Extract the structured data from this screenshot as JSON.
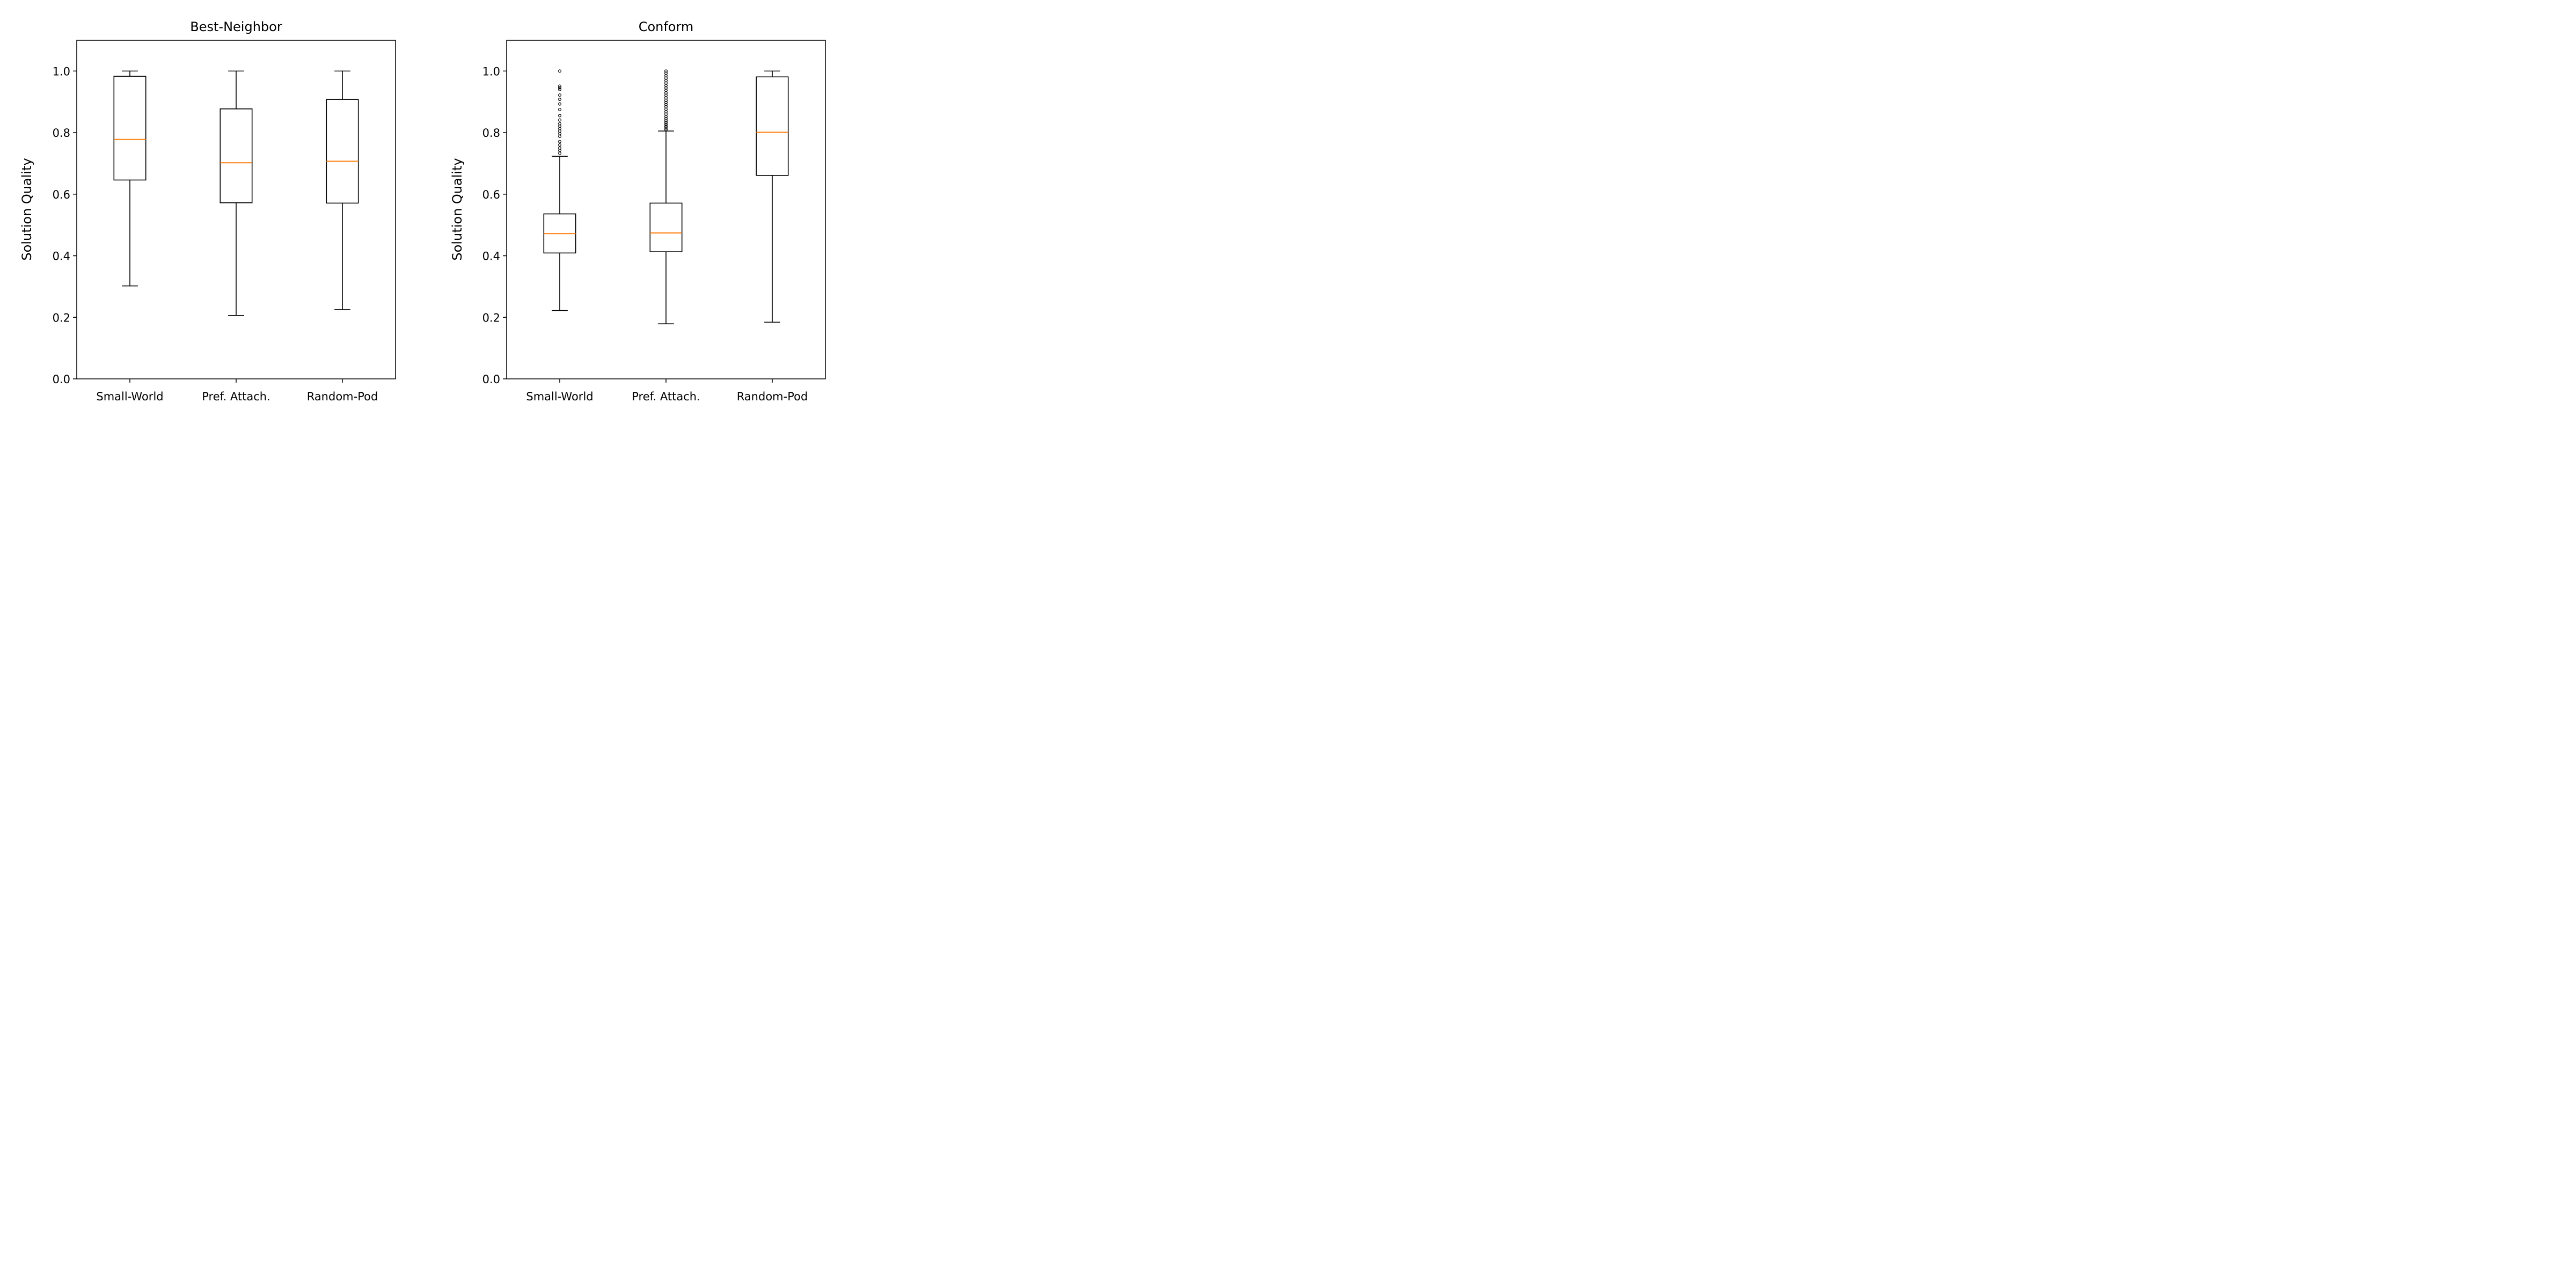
{
  "chart_data": [
    {
      "type": "box",
      "title": "Best-Neighbor",
      "ylabel": "Solution Quality",
      "xlabel": "",
      "ylim": [
        0.0,
        1.1
      ],
      "yticks": [
        "0.0",
        "0.2",
        "0.4",
        "0.6",
        "0.8",
        "1.0"
      ],
      "categories": [
        "Small-World",
        "Pref. Attach.",
        "Random-Pod"
      ],
      "boxes": [
        {
          "whisker_low": 0.302,
          "q1": 0.646,
          "median": 0.778,
          "q3": 0.983,
          "whisker_high": 1.0,
          "outliers": []
        },
        {
          "whisker_low": 0.206,
          "q1": 0.572,
          "median": 0.702,
          "q3": 0.877,
          "whisker_high": 1.0,
          "outliers": []
        },
        {
          "whisker_low": 0.225,
          "q1": 0.571,
          "median": 0.707,
          "q3": 0.908,
          "whisker_high": 1.0,
          "outliers": []
        }
      ],
      "grid": false
    },
    {
      "type": "box",
      "title": "Conform",
      "ylabel": "Solution Quality",
      "xlabel": "",
      "ylim": [
        0.0,
        1.1
      ],
      "yticks": [
        "0.0",
        "0.2",
        "0.4",
        "0.6",
        "0.8",
        "1.0"
      ],
      "categories": [
        "Small-World",
        "Pref. Attach.",
        "Random-Pod"
      ],
      "boxes": [
        {
          "whisker_low": 0.222,
          "q1": 0.409,
          "median": 0.472,
          "q3": 0.536,
          "whisker_high": 0.723,
          "outliers": [
            0.733,
            0.742,
            0.75,
            0.76,
            0.771,
            0.788,
            0.797,
            0.805,
            0.813,
            0.821,
            0.829,
            0.841,
            0.855,
            0.875,
            0.893,
            0.908,
            0.922,
            0.94,
            0.946,
            0.951,
            1.0
          ]
        },
        {
          "whisker_low": 0.179,
          "q1": 0.413,
          "median": 0.474,
          "q3": 0.571,
          "whisker_high": 0.805,
          "outliers": [
            0.81,
            0.815,
            0.82,
            0.826,
            0.832,
            0.838,
            0.845,
            0.852,
            0.86,
            0.868,
            0.876,
            0.884,
            0.891,
            0.898,
            0.905,
            0.913,
            0.921,
            0.929,
            0.937,
            0.945,
            0.953,
            0.961,
            0.969,
            0.977,
            0.985,
            0.993,
            1.0
          ]
        },
        {
          "whisker_low": 0.184,
          "q1": 0.661,
          "median": 0.801,
          "q3": 0.981,
          "whisker_high": 1.0,
          "outliers": []
        }
      ],
      "grid": false
    }
  ],
  "colors": {
    "box": "#000000",
    "median": "#ff7f0e",
    "outlier": "#000000"
  }
}
